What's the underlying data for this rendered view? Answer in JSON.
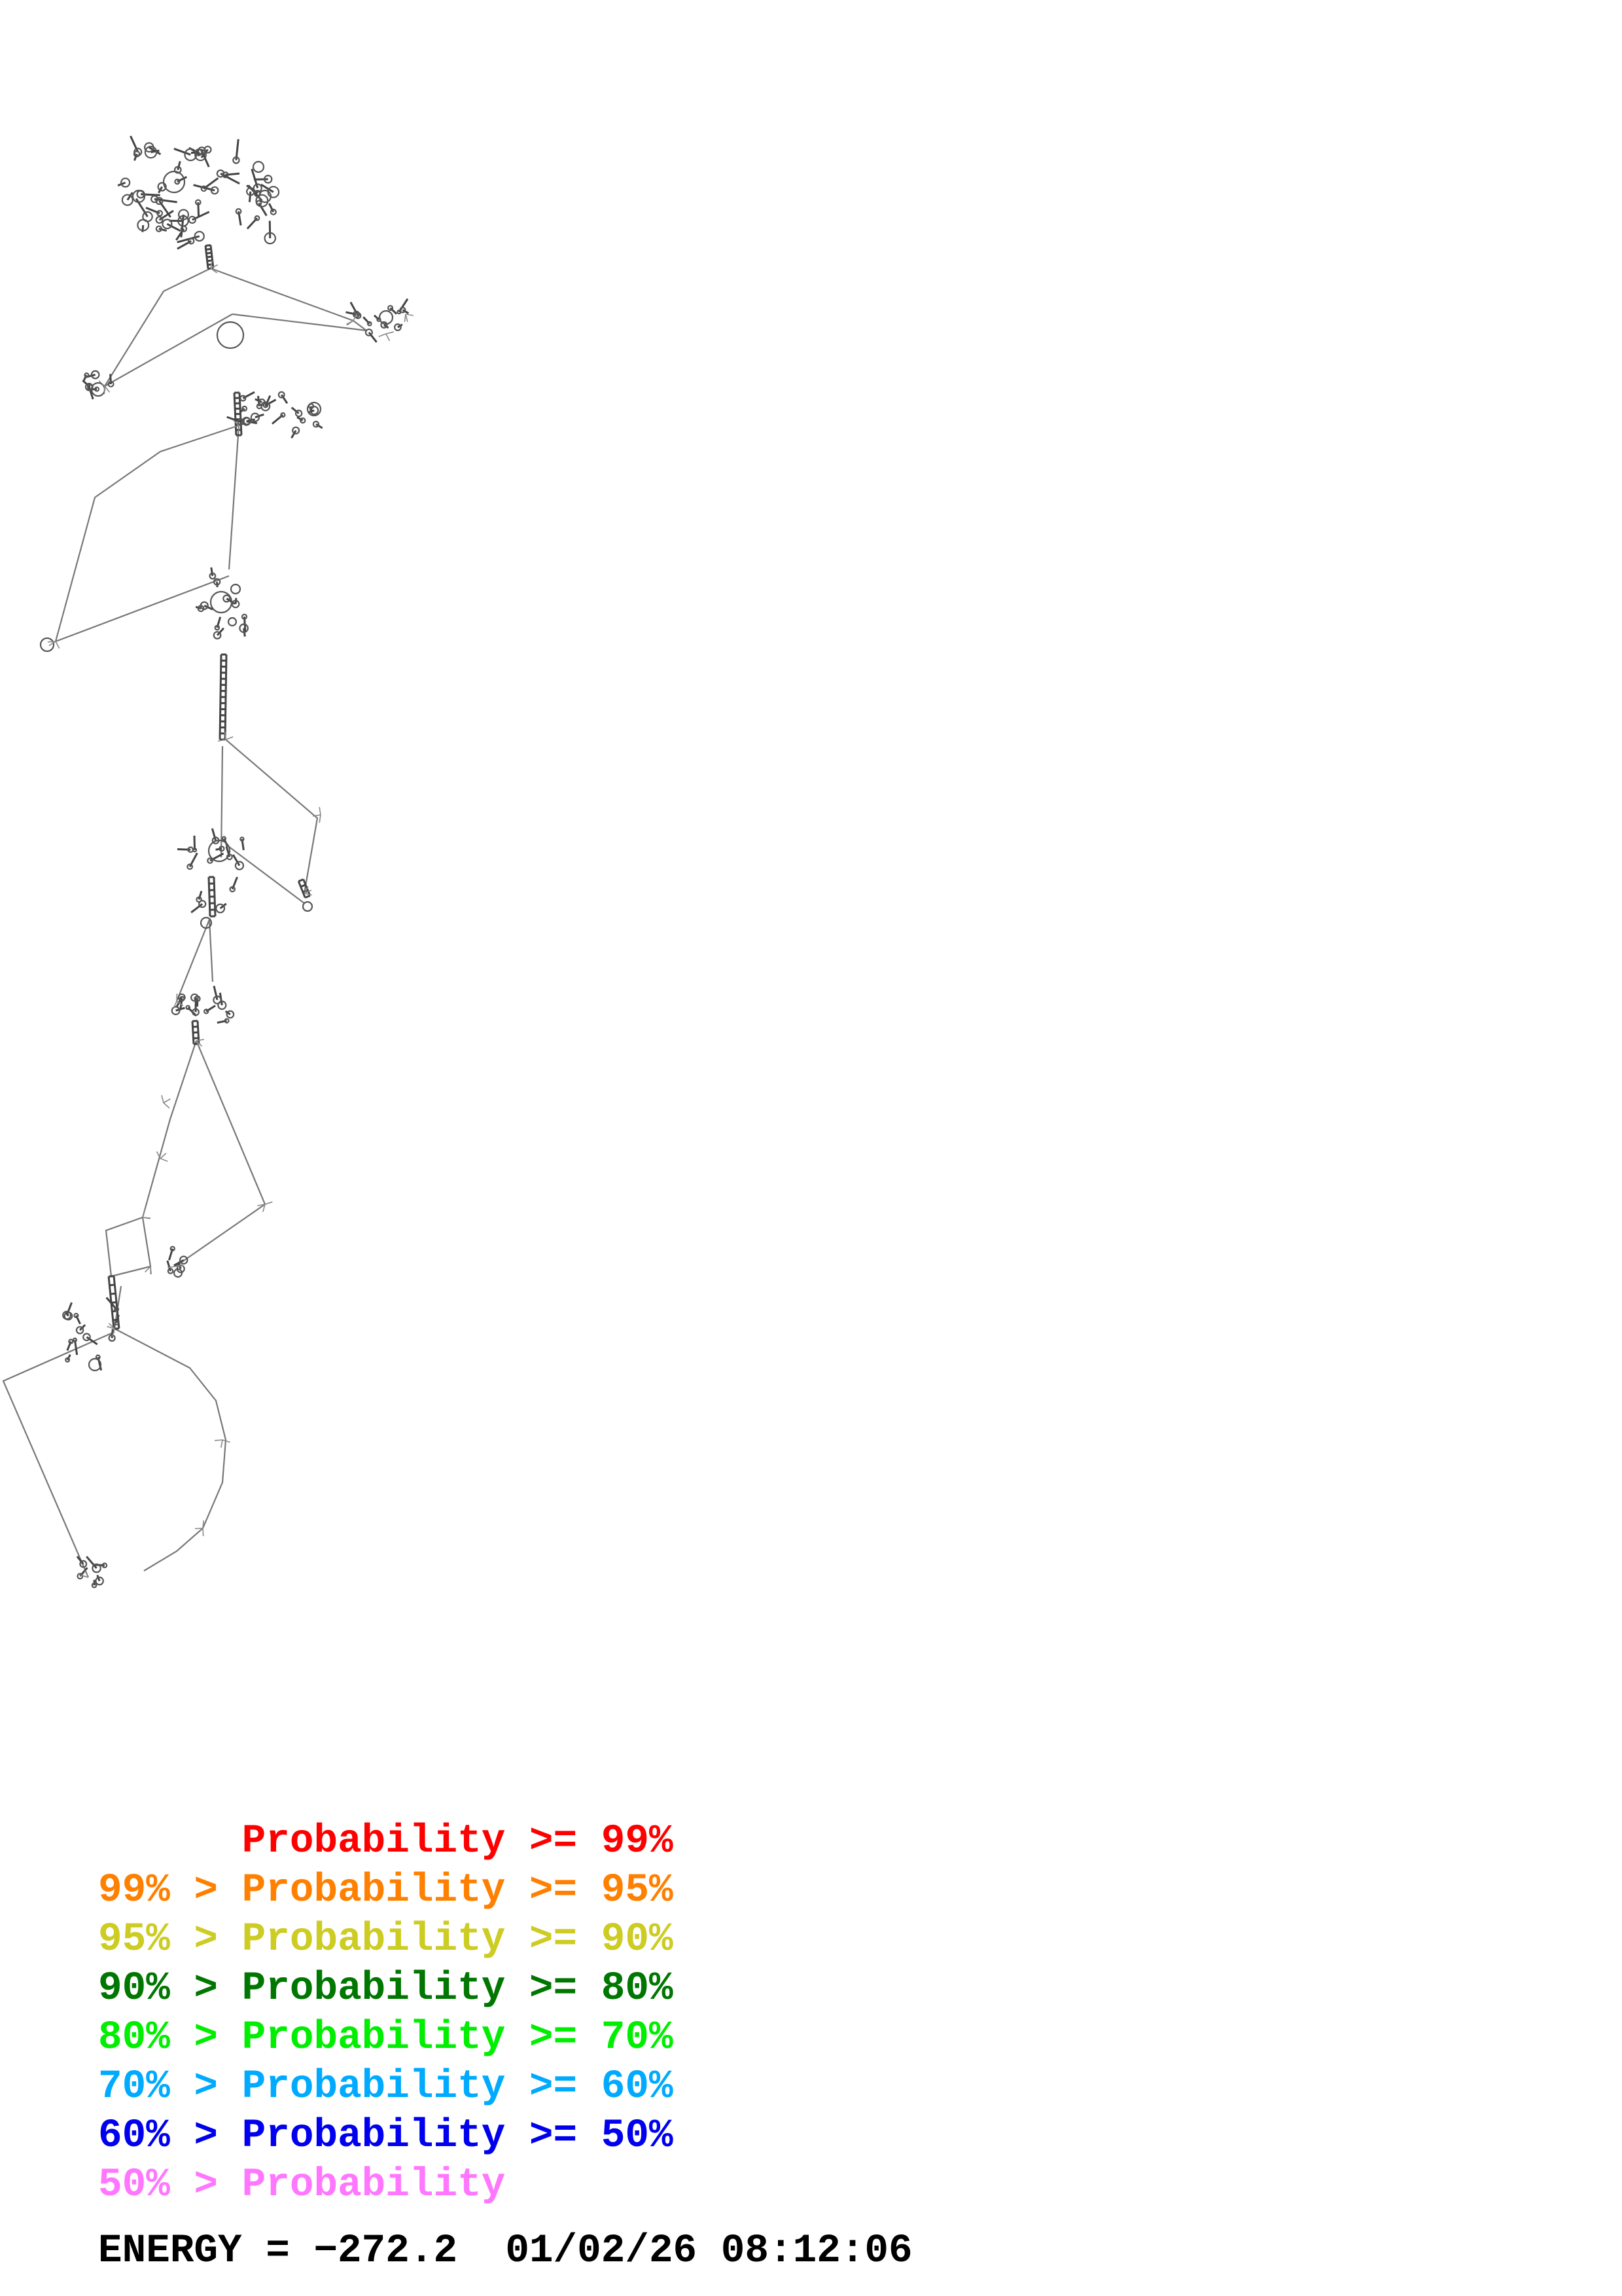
{
  "legend": {
    "rows": [
      {
        "prefix": "      ",
        "label": "Probability >= 99%",
        "color": "#ff0000"
      },
      {
        "prefix": "99% > ",
        "label": "Probability >= 95%",
        "color": "#ff8000"
      },
      {
        "prefix": "95% > ",
        "label": "Probability >= 90%",
        "color": "#cccc22"
      },
      {
        "prefix": "90% > ",
        "label": "Probability >= 80%",
        "color": "#007700"
      },
      {
        "prefix": "80% > ",
        "label": "Probability >= 70%",
        "color": "#00ee00"
      },
      {
        "prefix": "70% > ",
        "label": "Probability >= 60%",
        "color": "#00aaff"
      },
      {
        "prefix": "60% > ",
        "label": "Probability >= 50%",
        "color": "#0000ee"
      },
      {
        "prefix": "50% > ",
        "label": "Probability",
        "color": "#ff77ff"
      }
    ]
  },
  "footer": {
    "energy_label": "ENERGY = −272.2",
    "timestamp": "01/02/26 08:12:06"
  },
  "diagram": {
    "backbone_color": "#777777",
    "helix_color": "#444444"
  }
}
